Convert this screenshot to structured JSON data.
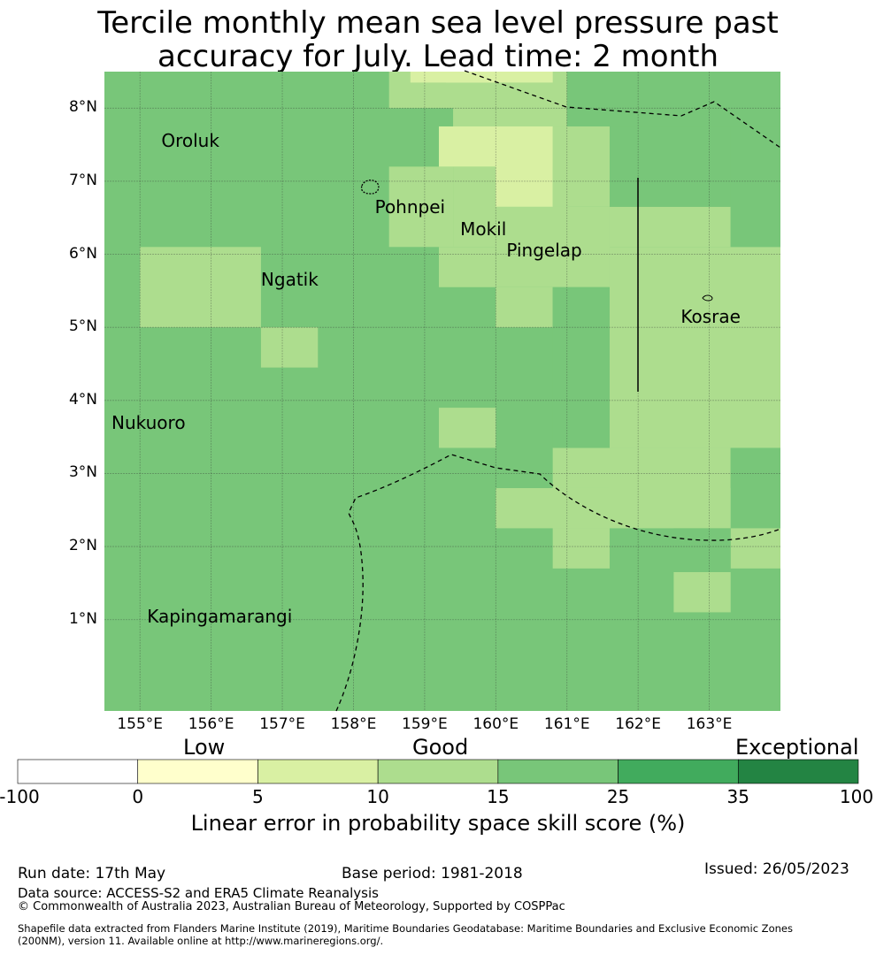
{
  "title": {
    "line1": "Tercile monthly mean sea level pressure past",
    "line2": "accuracy for July. Lead time: 2 month"
  },
  "map": {
    "lon_range": [
      154.5,
      164.0
    ],
    "lat_range": [
      -0.25,
      8.5
    ],
    "lat_ticks": [
      {
        "value": 8,
        "label": "8°N"
      },
      {
        "value": 7,
        "label": "7°N"
      },
      {
        "value": 6,
        "label": "6°N"
      },
      {
        "value": 5,
        "label": "5°N"
      },
      {
        "value": 4,
        "label": "4°N"
      },
      {
        "value": 3,
        "label": "3°N"
      },
      {
        "value": 2,
        "label": "2°N"
      },
      {
        "value": 1,
        "label": "1°N"
      }
    ],
    "lon_ticks": [
      {
        "value": 155,
        "label": "155°E"
      },
      {
        "value": 156,
        "label": "156°E"
      },
      {
        "value": 157,
        "label": "157°E"
      },
      {
        "value": 158,
        "label": "158°E"
      },
      {
        "value": 159,
        "label": "159°E"
      },
      {
        "value": 160,
        "label": "160°E"
      },
      {
        "value": 161,
        "label": "161°E"
      },
      {
        "value": 162,
        "label": "162°E"
      },
      {
        "value": 163,
        "label": "163°E"
      }
    ],
    "places": [
      {
        "name": "Oroluk",
        "lon": 155.3,
        "lat": 7.55
      },
      {
        "name": "Pohnpei",
        "lon": 158.3,
        "lat": 6.65
      },
      {
        "name": "Mokil",
        "lon": 159.5,
        "lat": 6.35
      },
      {
        "name": "Pingelap",
        "lon": 160.15,
        "lat": 6.05
      },
      {
        "name": "Ngatik",
        "lon": 156.7,
        "lat": 5.65
      },
      {
        "name": "Kosrae",
        "lon": 162.6,
        "lat": 5.15
      },
      {
        "name": "Nukuoro",
        "lon": 154.6,
        "lat": 3.7
      },
      {
        "name": "Kapingamarangi",
        "lon": 155.1,
        "lat": 1.05
      }
    ],
    "background_value": 20,
    "cells": [
      {
        "lon": [
          158.5,
          161.0
        ],
        "lat": [
          8.0,
          8.5
        ],
        "value": 12
      },
      {
        "lon": [
          158.8,
          160.8
        ],
        "lat": [
          8.35,
          8.5
        ],
        "value": 8
      },
      {
        "lon": [
          159.3,
          160.0
        ],
        "lat": [
          8.35,
          8.5
        ],
        "value": 8
      },
      {
        "lon": [
          158.5,
          159.4
        ],
        "lat": [
          7.2,
          8.0
        ],
        "value": 20
      },
      {
        "lon": [
          159.4,
          161.0
        ],
        "lat": [
          7.2,
          8.0
        ],
        "value": 12
      },
      {
        "lon": [
          158.5,
          159.4
        ],
        "lat": [
          6.1,
          7.2
        ],
        "value": 12
      },
      {
        "lon": [
          159.4,
          161.0
        ],
        "lat": [
          7.2,
          7.75
        ],
        "value": 12
      },
      {
        "lon": [
          159.2,
          160.8
        ],
        "lat": [
          7.2,
          7.75
        ],
        "value": 8
      },
      {
        "lon": [
          159.4,
          161.0
        ],
        "lat": [
          6.1,
          7.2
        ],
        "value": 12
      },
      {
        "lon": [
          160.0,
          160.8
        ],
        "lat": [
          6.65,
          7.75
        ],
        "value": 8
      },
      {
        "lon": [
          160.8,
          161.6
        ],
        "lat": [
          6.65,
          7.75
        ],
        "value": 12
      },
      {
        "lon": [
          159.2,
          160.0
        ],
        "lat": [
          5.55,
          6.1
        ],
        "value": 12
      },
      {
        "lon": [
          160.0,
          161.6
        ],
        "lat": [
          5.55,
          6.65
        ],
        "value": 12
      },
      {
        "lon": [
          160.0,
          160.8
        ],
        "lat": [
          5.0,
          5.55
        ],
        "value": 12
      },
      {
        "lon": [
          161.6,
          164.0
        ],
        "lat": [
          6.1,
          6.65
        ],
        "value": 12
      },
      {
        "lon": [
          163.3,
          164.0
        ],
        "lat": [
          6.1,
          6.65
        ],
        "value": 20
      },
      {
        "lon": [
          161.6,
          164.0
        ],
        "lat": [
          3.35,
          6.1
        ],
        "value": 12
      },
      {
        "lon": [
          155.0,
          156.7
        ],
        "lat": [
          5.0,
          6.1
        ],
        "value": 12
      },
      {
        "lon": [
          156.7,
          157.5
        ],
        "lat": [
          4.45,
          5.0
        ],
        "value": 12
      },
      {
        "lon": [
          159.2,
          160.0
        ],
        "lat": [
          3.35,
          3.9
        ],
        "value": 12
      },
      {
        "lon": [
          160.8,
          163.3
        ],
        "lat": [
          2.25,
          3.35
        ],
        "value": 12
      },
      {
        "lon": [
          163.3,
          164.0
        ],
        "lat": [
          1.7,
          2.25
        ],
        "value": 12
      },
      {
        "lon": [
          160.0,
          161.6
        ],
        "lat": [
          2.25,
          2.8
        ],
        "value": 12
      },
      {
        "lon": [
          160.8,
          161.6
        ],
        "lat": [
          1.7,
          2.25
        ],
        "value": 12
      },
      {
        "lon": [
          162.5,
          163.3
        ],
        "lat": [
          1.1,
          1.65
        ],
        "value": 12
      }
    ],
    "green_overrides": [
      {
        "lon": [
          161.0,
          164.0
        ],
        "lat": [
          7.75,
          8.5
        ],
        "value": 20
      },
      {
        "lon": [
          161.6,
          163.3
        ],
        "lat": [
          6.65,
          7.75
        ],
        "value": 20
      },
      {
        "lon": [
          163.3,
          164.0
        ],
        "lat": [
          6.1,
          7.75
        ],
        "value": 20
      },
      {
        "lon": [
          160.8,
          161.6
        ],
        "lat": [
          3.35,
          5.55
        ],
        "value": 20
      },
      {
        "lon": [
          163.3,
          164.0
        ],
        "lat": [
          2.8,
          3.35
        ],
        "value": 20
      },
      {
        "lon": [
          162.5,
          163.3
        ],
        "lat": [
          1.7,
          2.25
        ],
        "value": 20
      }
    ]
  },
  "colorbar": {
    "categories": [
      {
        "label": "Low"
      },
      {
        "label": "Good"
      },
      {
        "label": "Exceptional"
      }
    ],
    "bins": [
      {
        "from": -100,
        "to": 0,
        "color": "#ffffff"
      },
      {
        "from": 0,
        "to": 5,
        "color": "#ffffcc"
      },
      {
        "from": 5,
        "to": 10,
        "color": "#d9f0a3"
      },
      {
        "from": 10,
        "to": 15,
        "color": "#addd8e"
      },
      {
        "from": 15,
        "to": 25,
        "color": "#78c679"
      },
      {
        "from": 25,
        "to": 35,
        "color": "#41ab5d"
      },
      {
        "from": 35,
        "to": 100,
        "color": "#238443"
      }
    ],
    "tick_labels": [
      "-100",
      "0",
      "5",
      "10",
      "15",
      "25",
      "35",
      "100"
    ],
    "label": "Linear error in probability space skill score (%)"
  },
  "footer": {
    "run_date": "Run date: 17th May",
    "base_period": "Base period: 1981-2018",
    "issued": "Issued: 26/05/2023",
    "data_source": "Data source: ACCESS-S2 and ERA5 Climate Reanalysis",
    "copyright": "© Commonwealth of Australia 2023, Australian Bureau of Meteorology, Supported by COSPPac",
    "shapefile1": "Shapefile data extracted from Flanders Marine Institute (2019), Maritime Boundaries Geodatabase: Maritime Boundaries and Exclusive Economic Zones",
    "shapefile2": "(200NM), version 11. Available online at http://www.marineregions.org/."
  }
}
